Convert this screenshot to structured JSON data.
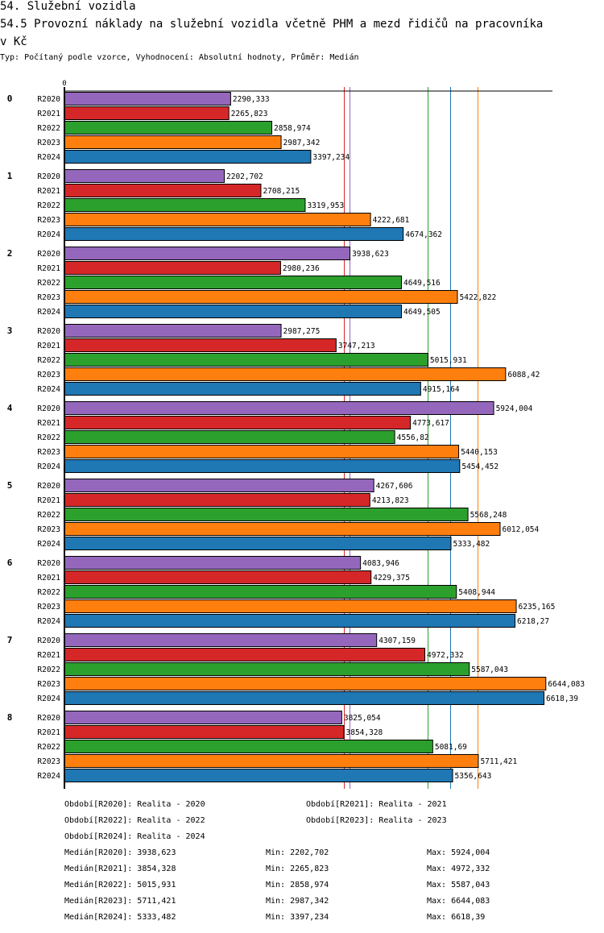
{
  "header": {
    "title": "54. Služební vozidla",
    "subtitle_line1": "54.5 Provozní náklady na služební vozidla včetně PHM a mezd řidičů na pracovníka",
    "subtitle_line2": "v Kč",
    "info": "Typ: Počítaný podle vzorce, Vyhodnocení: Absolutní hodnoty, Průměr: Medián"
  },
  "chart_data": {
    "type": "bar",
    "orientation": "horizontal",
    "title": "54.5 Provozní náklady na služební vozidla včetně PHM a mezd řidičů na pracovníka v Kč",
    "xlabel": "",
    "ylabel": "",
    "x_tick_labels": [
      "0"
    ],
    "xlim": [
      0,
      6740
    ],
    "grid": false,
    "categories": [
      "0",
      "1",
      "2",
      "3",
      "4",
      "5",
      "6",
      "7",
      "8"
    ],
    "series": [
      {
        "name": "R2020",
        "color": "#9467bd",
        "values": [
          2290.333,
          2202.702,
          3938.623,
          2987.275,
          5924.004,
          4267.606,
          4083.946,
          4307.159,
          3825.054
        ],
        "labels": [
          "2290,333",
          "2202,702",
          "3938,623",
          "2987,275",
          "5924,004",
          "4267,606",
          "4083,946",
          "4307,159",
          "3825,054"
        ]
      },
      {
        "name": "R2021",
        "color": "#d62728",
        "values": [
          2265.823,
          2708.215,
          2980.236,
          3747.213,
          4773.617,
          4213.823,
          4229.375,
          4972.332,
          3854.328
        ],
        "labels": [
          "2265,823",
          "2708,215",
          "2980,236",
          "3747,213",
          "4773,617",
          "4213,823",
          "4229,375",
          "4972,332",
          "3854,328"
        ]
      },
      {
        "name": "R2022",
        "color": "#2ca02c",
        "values": [
          2858.974,
          3319.953,
          4649.516,
          5015.931,
          4556.82,
          5568.248,
          5408.944,
          5587.043,
          5081.69
        ],
        "labels": [
          "2858,974",
          "3319,953",
          "4649,516",
          "5015,931",
          "4556,82",
          "5568,248",
          "5408,944",
          "5587,043",
          "5081,69"
        ]
      },
      {
        "name": "R2023",
        "color": "#ff7f0e",
        "values": [
          2987.342,
          4222.681,
          5422.822,
          6088.42,
          5440.153,
          6012.054,
          6235.165,
          6644.083,
          5711.421
        ],
        "labels": [
          "2987,342",
          "4222,681",
          "5422,822",
          "6088,42",
          "5440,153",
          "6012,054",
          "6235,165",
          "6644,083",
          "5711,421"
        ]
      },
      {
        "name": "R2024",
        "color": "#1f77b4",
        "values": [
          3397.234,
          4674.362,
          4649.505,
          4915.164,
          5454.452,
          5333.482,
          6218.27,
          6618.39,
          5356.643
        ],
        "labels": [
          "3397,234",
          "4674,362",
          "4649,505",
          "4915,164",
          "5454,452",
          "5333,482",
          "6218,27",
          "6618,39",
          "5356,643"
        ]
      }
    ],
    "median_lines": [
      {
        "series": "R2021",
        "value": 3854.328,
        "color": "#d62728"
      },
      {
        "series": "R2020",
        "value": 3938.623,
        "color": "#9467bd"
      },
      {
        "series": "R2022",
        "value": 5015.931,
        "color": "#2ca02c"
      },
      {
        "series": "R2024",
        "value": 5333.482,
        "color": "#1f77b4"
      },
      {
        "series": "R2023",
        "value": 5711.421,
        "color": "#ff7f0e"
      }
    ],
    "legend_position": "bottom"
  },
  "legend": {
    "periods": [
      "Období[R2020]: Realita - 2020",
      "Období[R2021]: Realita - 2021",
      "Období[R2022]: Realita - 2022",
      "Období[R2023]: Realita - 2023",
      "Období[R2024]: Realita - 2024"
    ],
    "stats": [
      {
        "median": "Medián[R2020]: 3938,623",
        "min": "Min: 2202,702",
        "max": "Max: 5924,004"
      },
      {
        "median": "Medián[R2021]: 3854,328",
        "min": "Min: 2265,823",
        "max": "Max: 4972,332"
      },
      {
        "median": "Medián[R2022]: 5015,931",
        "min": "Min: 2858,974",
        "max": "Max: 5587,043"
      },
      {
        "median": "Medián[R2023]: 5711,421",
        "min": "Min: 2987,342",
        "max": "Max: 6644,083"
      },
      {
        "median": "Medián[R2024]: 5333,482",
        "min": "Min: 3397,234",
        "max": "Max: 6618,39"
      }
    ]
  }
}
